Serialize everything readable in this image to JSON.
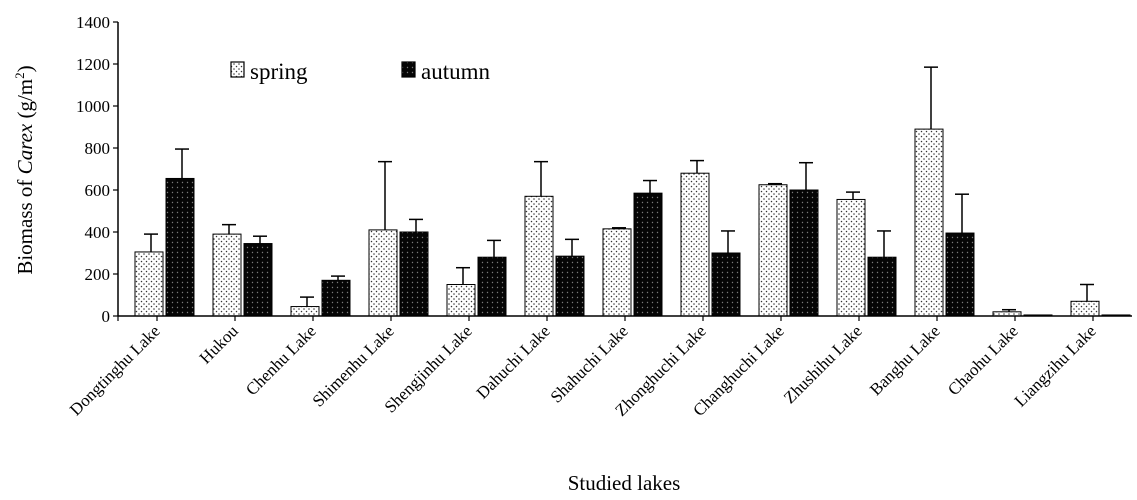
{
  "chart_data": {
    "type": "bar",
    "title": "",
    "xlabel": "Studied lakes",
    "ylabel_prefix": "Biomass of ",
    "ylabel_italic": "Carex",
    "ylabel_unit": " (g/m",
    "ylabel_sup": "2",
    "ylabel_close": ")",
    "ylim": [
      0,
      1400
    ],
    "yticks": [
      0,
      200,
      400,
      600,
      800,
      1000,
      1200,
      1400
    ],
    "grid": false,
    "legend_position": "top-left",
    "categories": [
      "Dongtinghu Lake",
      "Hukou",
      "Chenhu Lake",
      "Shimenhu Lake",
      "Shengjinhu Lake",
      "Dahuchi Lake",
      "Shahuchi Lake",
      "Zhonghuchi Lake",
      "Changhuchi Lake",
      "Zhushihu Lake",
      "Banghu Lake",
      "Chaohu Lake",
      "Liangzihu Lake"
    ],
    "series": [
      {
        "name": "spring",
        "pattern": "dotted",
        "values": [
          305,
          390,
          45,
          410,
          150,
          570,
          415,
          680,
          625,
          555,
          890,
          20,
          70
        ],
        "errors": [
          85,
          45,
          45,
          325,
          80,
          165,
          5,
          60,
          5,
          35,
          295,
          10,
          80
        ]
      },
      {
        "name": "autumn",
        "pattern": "dark",
        "values": [
          655,
          345,
          170,
          400,
          280,
          285,
          585,
          300,
          600,
          280,
          395,
          5,
          5
        ],
        "errors": [
          140,
          35,
          20,
          60,
          80,
          80,
          60,
          105,
          130,
          125,
          185,
          0,
          0
        ]
      }
    ]
  }
}
